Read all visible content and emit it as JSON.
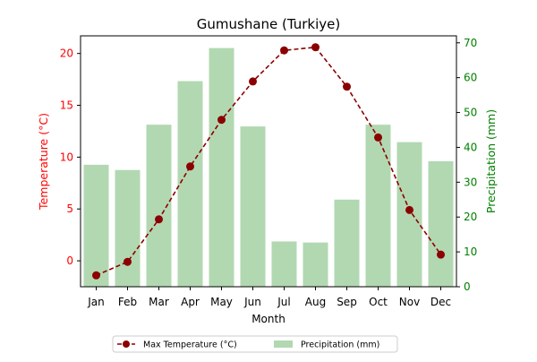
{
  "chart_data": {
    "type": "bar+line",
    "title": "Gumushane (Turkiye)",
    "xlabel": "Month",
    "categories": [
      "Jan",
      "Feb",
      "Mar",
      "Apr",
      "May",
      "Jun",
      "Jul",
      "Aug",
      "Sep",
      "Oct",
      "Nov",
      "Dec"
    ],
    "y_left": {
      "label": "Temperature (°C)",
      "color": "#ff0000",
      "ticks": [
        0,
        5,
        10,
        15,
        20
      ],
      "ylim": [
        -2.5,
        21.7
      ]
    },
    "y_right": {
      "label": "Precipitation (mm)",
      "color": "#008000",
      "ticks": [
        0,
        10,
        20,
        30,
        40,
        50,
        60,
        70
      ],
      "ylim": [
        0,
        72
      ]
    },
    "series": [
      {
        "name": "Max Temperature (°C)",
        "kind": "line",
        "axis": "left",
        "color": "#8b0000",
        "values": [
          -1.4,
          -0.1,
          4.0,
          9.1,
          13.6,
          17.3,
          20.3,
          20.6,
          16.8,
          11.9,
          4.9,
          0.6
        ]
      },
      {
        "name": "Precipitation (mm)",
        "kind": "bar",
        "axis": "right",
        "color": "#b2d8b2",
        "values": [
          35,
          33.5,
          46.5,
          59,
          68.5,
          46,
          13,
          12.7,
          25,
          46.5,
          41.5,
          36
        ]
      }
    ],
    "legend_position": "bottom-center"
  }
}
